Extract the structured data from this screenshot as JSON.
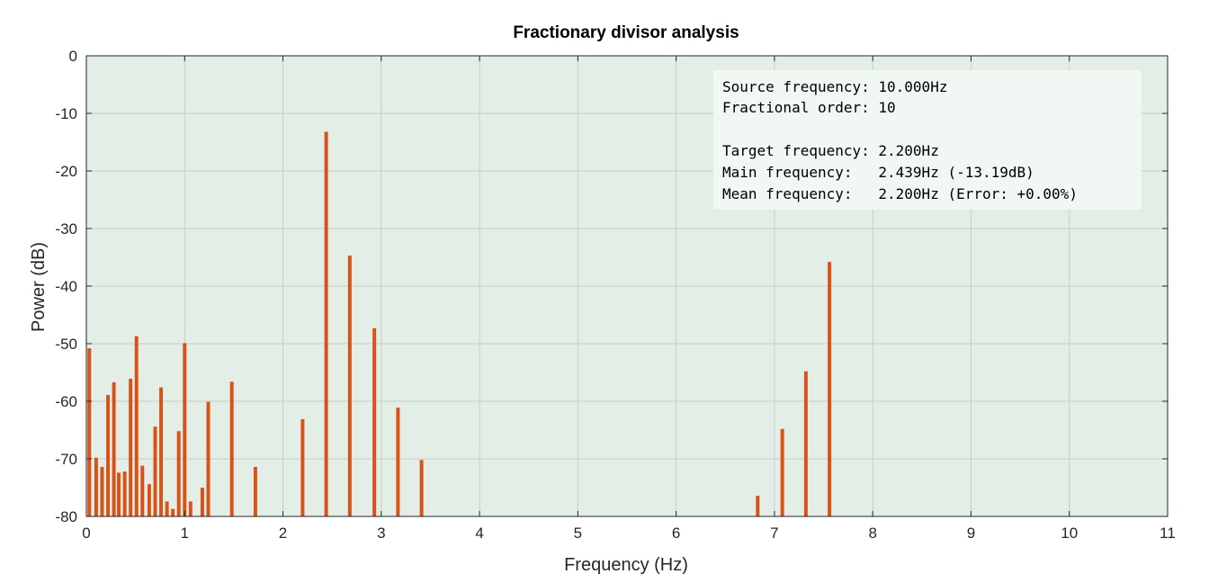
{
  "chart_data": {
    "type": "bar",
    "title": "Fractionary divisor analysis",
    "xlabel": "Frequency (Hz)",
    "ylabel": "Power (dB)",
    "xlim": [
      0,
      11
    ],
    "ylim": [
      -80,
      0
    ],
    "xticks": [
      0,
      1,
      2,
      3,
      4,
      5,
      6,
      7,
      8,
      9,
      10,
      11
    ],
    "yticks": [
      0,
      -10,
      -20,
      -30,
      -40,
      -50,
      -60,
      -70,
      -80
    ],
    "grid": true,
    "background_color": "#e3efe6",
    "stem_color": "#d95319",
    "series": [
      {
        "x": [
          0.03,
          0.1,
          0.16,
          0.22,
          0.28,
          0.33,
          0.39,
          0.45,
          0.51,
          0.57,
          0.64,
          0.7,
          0.76,
          0.82,
          0.88,
          0.94,
          1.0,
          1.06,
          1.18,
          1.24,
          1.48,
          1.72,
          2.2,
          2.44,
          2.68,
          2.93,
          3.17,
          3.41,
          6.83,
          7.08,
          7.32,
          7.56
        ],
        "values": [
          -50.8,
          -69.8,
          -71.4,
          -58.9,
          -56.7,
          -72.4,
          -72.2,
          -56.1,
          -48.7,
          -71.2,
          -74.4,
          -64.4,
          -57.6,
          -77.4,
          -78.7,
          -65.2,
          -49.9,
          -77.4,
          -75.0,
          -60.1,
          -56.6,
          -71.4,
          -63.1,
          -13.2,
          -34.7,
          -47.3,
          -61.1,
          -70.2,
          -76.4,
          -64.8,
          -54.8,
          -35.8
        ]
      }
    ],
    "annotation": {
      "source_frequency": "Source frequency: 10.000Hz",
      "fractional_order": "Fractional order: 10",
      "target_frequency": "Target frequency: 2.200Hz",
      "main_frequency": "Main frequency:   2.439Hz (-13.19dB)",
      "mean_frequency": "Mean frequency:   2.200Hz (Error: +0.00%)"
    }
  }
}
